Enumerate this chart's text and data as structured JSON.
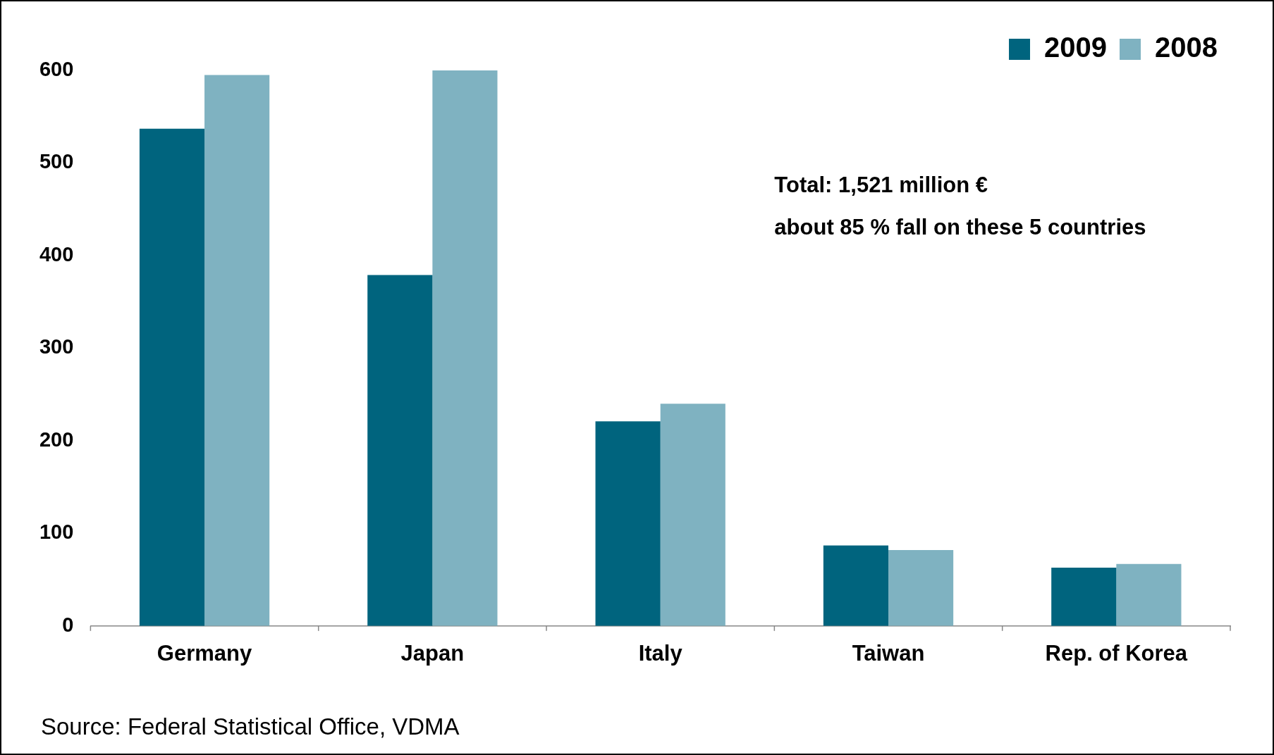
{
  "chart_data": {
    "type": "bar",
    "categories": [
      "Germany",
      "Japan",
      "Italy",
      "Taiwan",
      "Rep. of Korea"
    ],
    "series": [
      {
        "name": "2009",
        "color": "#00647e",
        "values": [
          537,
          379,
          221,
          87,
          63
        ]
      },
      {
        "name": "2008",
        "color": "#7fb2c1",
        "values": [
          595,
          600,
          240,
          82,
          67
        ]
      }
    ],
    "ylim": [
      0,
      600
    ],
    "yticks": [
      0,
      100,
      200,
      300,
      400,
      500,
      600
    ],
    "grid": false,
    "legend": "top right",
    "annotations": [
      "Total: 1,521 million €",
      "about 85 % fall on these 5 countries",
      "Source: Federal Statistical Office, VDMA"
    ]
  }
}
